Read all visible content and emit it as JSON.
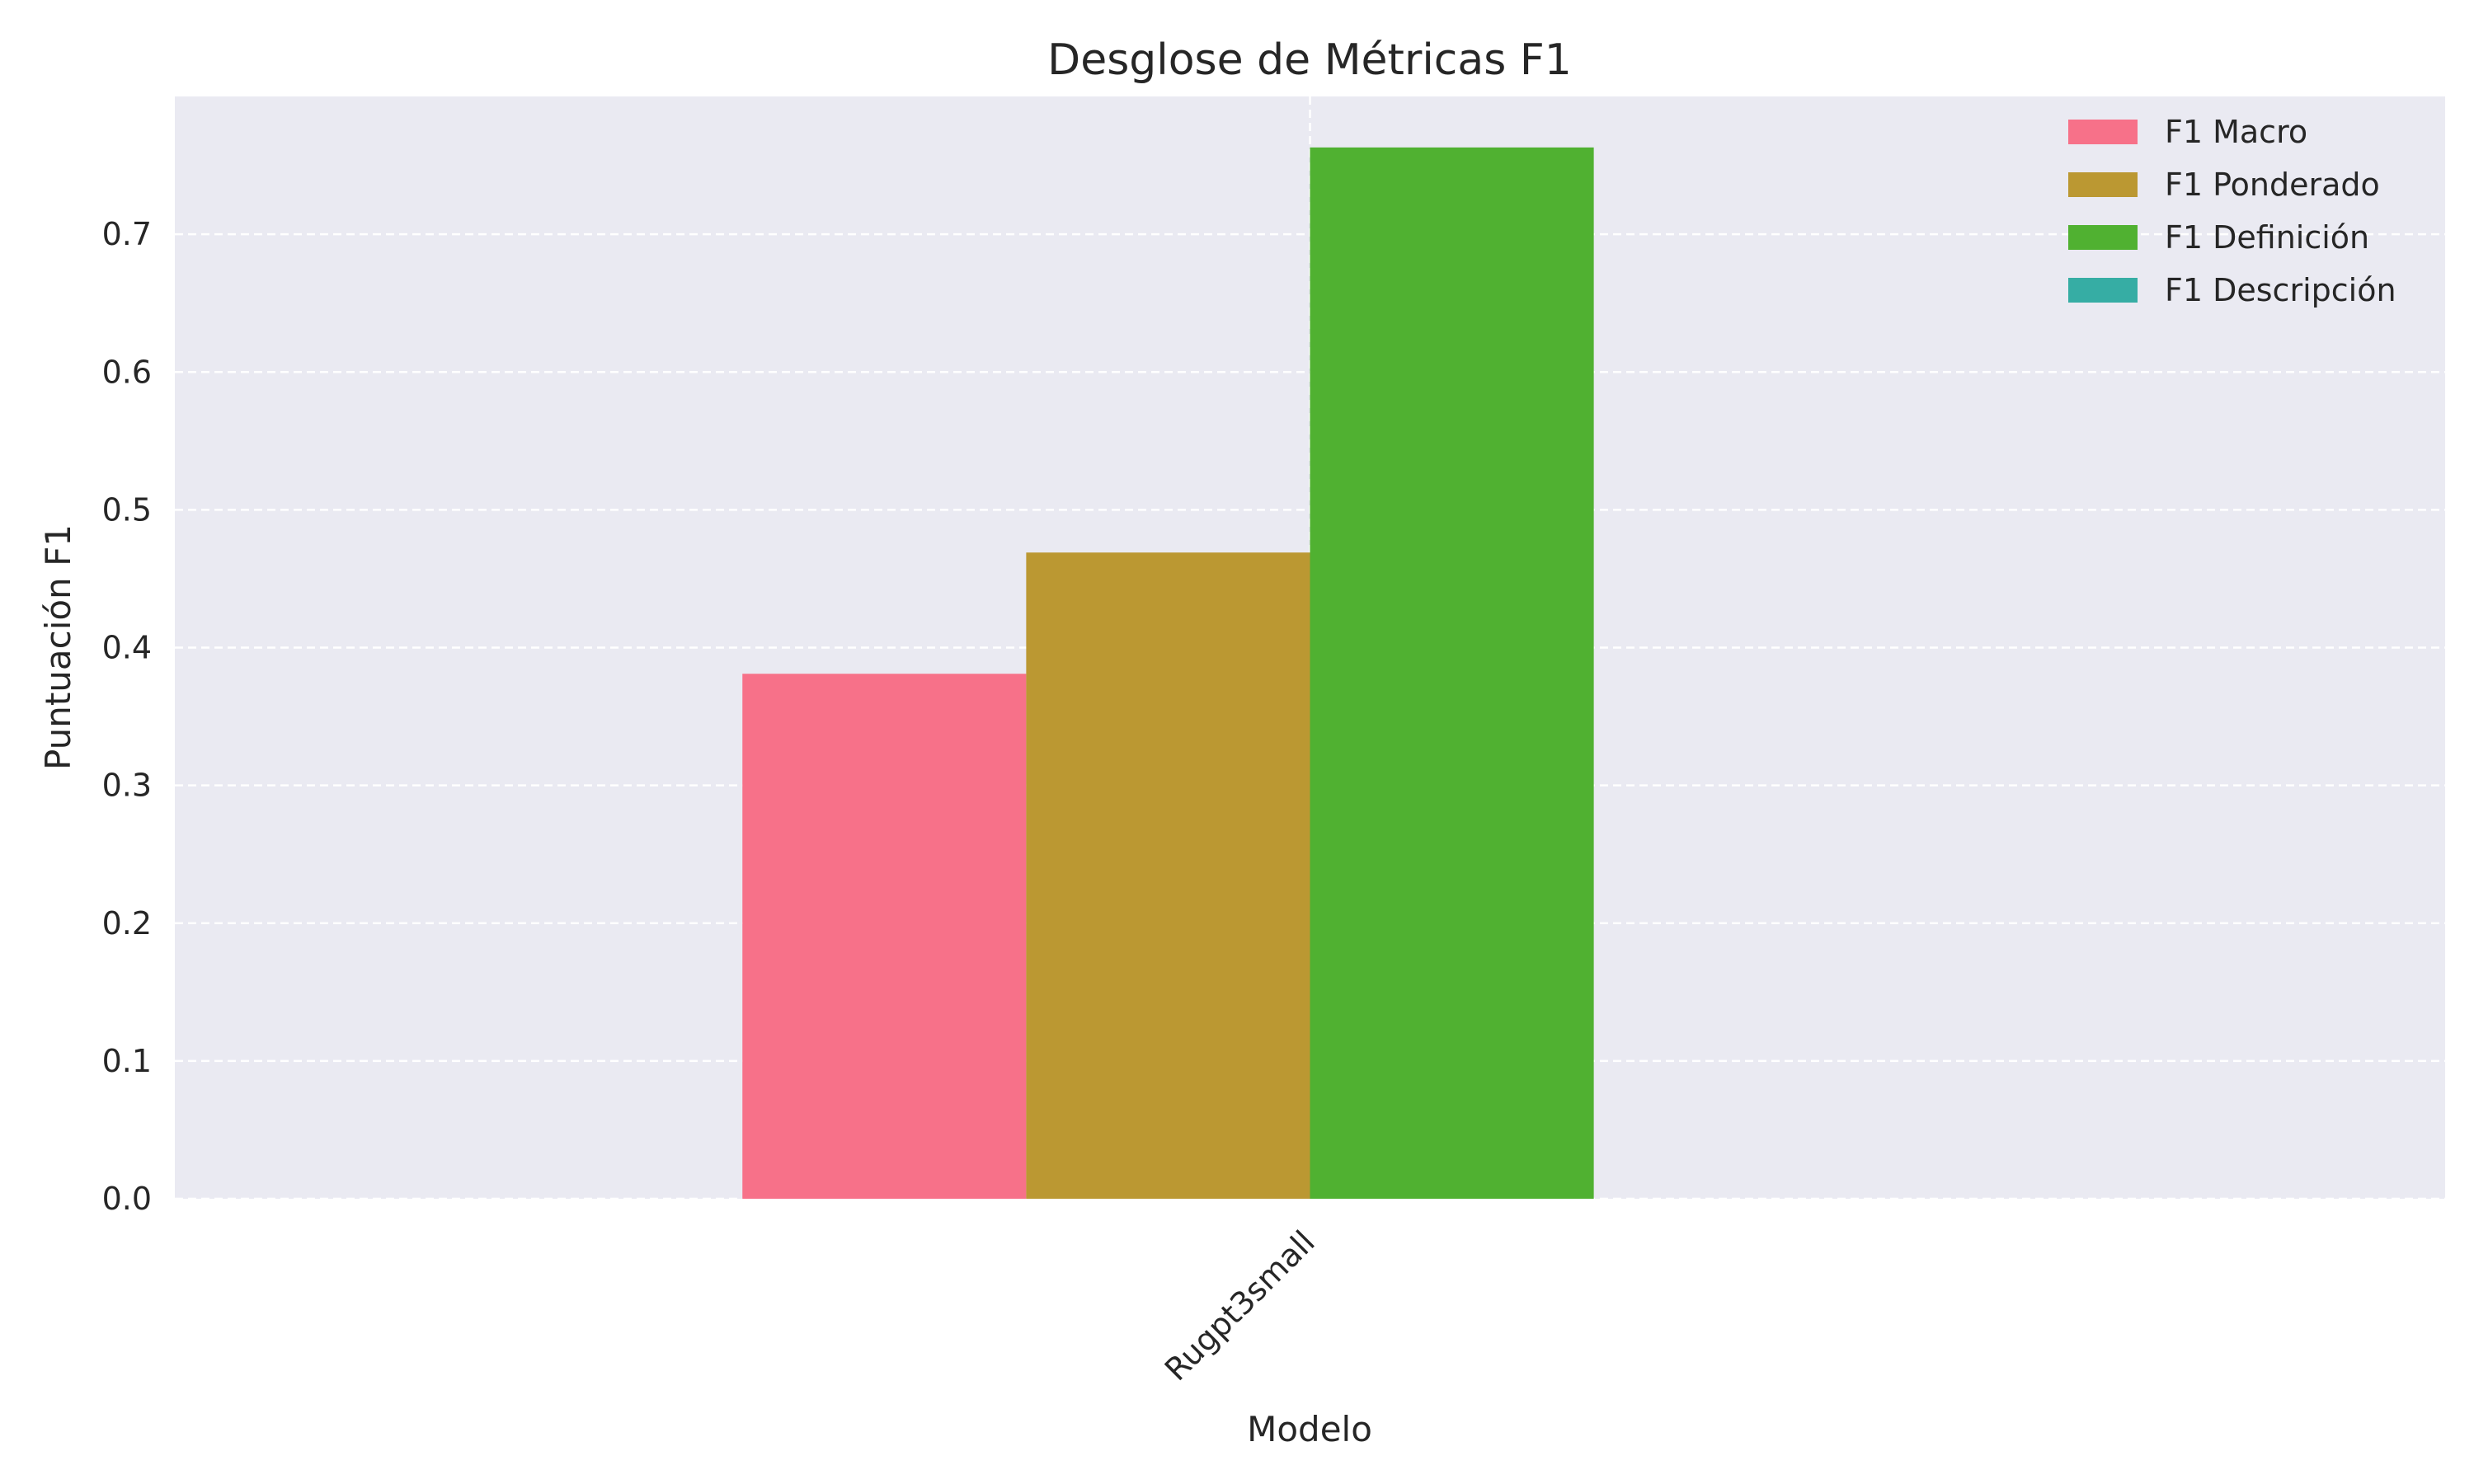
{
  "chart_data": {
    "type": "bar",
    "title": "Desglose de Métricas F1",
    "xlabel": "Modelo",
    "ylabel": "Puntuación F1",
    "categories": [
      "Rugpt3small"
    ],
    "series": [
      {
        "name": "F1 Macro",
        "values": [
          0.381
        ],
        "color": "#f77189"
      },
      {
        "name": "F1 Ponderado",
        "values": [
          0.469
        ],
        "color": "#bb9832"
      },
      {
        "name": "F1 Definición",
        "values": [
          0.763
        ],
        "color": "#50b131"
      },
      {
        "name": "F1 Descripción",
        "values": [
          0.0
        ],
        "color": "#36ada4"
      }
    ],
    "ylim": [
      0,
      0.8
    ],
    "yticks": [
      "0.0",
      "0.1",
      "0.2",
      "0.3",
      "0.4",
      "0.5",
      "0.6",
      "0.7"
    ],
    "grid": true,
    "legend_position": "top-right",
    "background": "#eaeaf2"
  }
}
